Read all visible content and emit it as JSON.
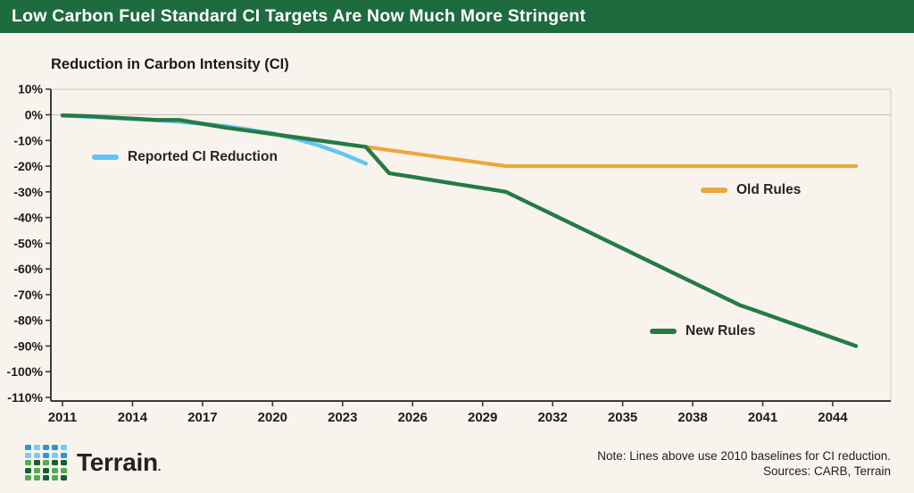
{
  "header": {
    "title": "Low Carbon Fuel Standard CI Targets Are Now Much More Stringent",
    "bg_color": "#1E6B3E",
    "text_color": "#FFFFFF"
  },
  "chart": {
    "title": "Reduction in Carbon Intensity (CI)"
  },
  "chart_data": {
    "type": "line",
    "title": "Reduction in Carbon Intensity (CI)",
    "xlabel": "",
    "ylabel": "Reduction in Carbon Intensity (CI), %",
    "xlim": [
      2010.6,
      2045.6
    ],
    "ylim": [
      -110,
      10
    ],
    "grid": "single horizontal reference line at 0%",
    "legend_position": "inside plot, free-floating labels",
    "x_ticks": [
      2011,
      2014,
      2017,
      2020,
      2023,
      2026,
      2029,
      2032,
      2035,
      2038,
      2041,
      2044
    ],
    "y_ticks": [
      10,
      0,
      -10,
      -20,
      -30,
      -40,
      -50,
      -60,
      -70,
      -80,
      -90,
      -100,
      -110
    ],
    "y_tick_labels": [
      "10%",
      "0%",
      "-10%",
      "-20%",
      "-30%",
      "-40%",
      "-50%",
      "-60%",
      "-70%",
      "-80%",
      "-90%",
      "-100%",
      "-110%"
    ],
    "series": [
      {
        "name": "Reported CI Reduction",
        "color": "#66C4F2",
        "width": 4.5,
        "x": [
          2011,
          2012,
          2013,
          2014,
          2015,
          2016,
          2017,
          2018,
          2019,
          2020,
          2021,
          2022,
          2023,
          2024
        ],
        "y": [
          -0.3,
          -0.7,
          -1.1,
          -1.6,
          -2.1,
          -2.7,
          -3.5,
          -4.5,
          -5.8,
          -7.3,
          -9.3,
          -12,
          -15.2,
          -19
        ]
      },
      {
        "name": "Old Rules",
        "color": "#E9A93B",
        "width": 4.2,
        "x": [
          2024,
          2025,
          2026,
          2027,
          2028,
          2029,
          2030,
          2045
        ],
        "y": [
          -12.5,
          -13.75,
          -15,
          -16.25,
          -17.5,
          -18.75,
          -20,
          -20
        ]
      },
      {
        "name": "New Rules",
        "color": "#257B43",
        "width": 4.4,
        "x": [
          2011,
          2012,
          2013,
          2014,
          2015,
          2016,
          2017,
          2018,
          2019,
          2020,
          2021,
          2022,
          2023,
          2024,
          2025,
          2026,
          2027,
          2028,
          2029,
          2030,
          2035,
          2040,
          2041,
          2042,
          2043,
          2044,
          2045
        ],
        "y": [
          -0.25,
          -0.5,
          -1,
          -1.5,
          -2,
          -2,
          -3.5,
          -5,
          -6.25,
          -7.5,
          -8.75,
          -10,
          -11.25,
          -12.5,
          -22.75,
          -24.2,
          -25.65,
          -27.1,
          -28.55,
          -30,
          -52,
          -74,
          -77.2,
          -80.4,
          -83.6,
          -86.8,
          -90
        ]
      }
    ]
  },
  "legend": {
    "reported": "Reported CI Reduction",
    "old_rules": "Old Rules",
    "new_rules": "New Rules"
  },
  "footer": {
    "logo_text": "Terrain",
    "logo_suffix": ".",
    "note_line1": "Note: Lines above use 2010 baselines for CI reduction.",
    "note_line2": "Sources: CARB, Terrain",
    "logo_colors": {
      "blue": "#2E96D9",
      "lightblue": "#7FC9EF",
      "green": "#4CAF50",
      "darkgreen": "#1B5E2F"
    },
    "logo_grid": [
      [
        "blue",
        "lightblue",
        "blue",
        "blue",
        "lightblue"
      ],
      [
        "lightblue",
        "lightblue",
        "blue",
        "lightblue",
        "blue"
      ],
      [
        "green",
        "darkgreen",
        "green",
        "darkgreen",
        "darkgreen"
      ],
      [
        "darkgreen",
        "green",
        "darkgreen",
        "green",
        "green"
      ],
      [
        "green",
        "green",
        "darkgreen",
        "green",
        "darkgreen"
      ]
    ]
  }
}
